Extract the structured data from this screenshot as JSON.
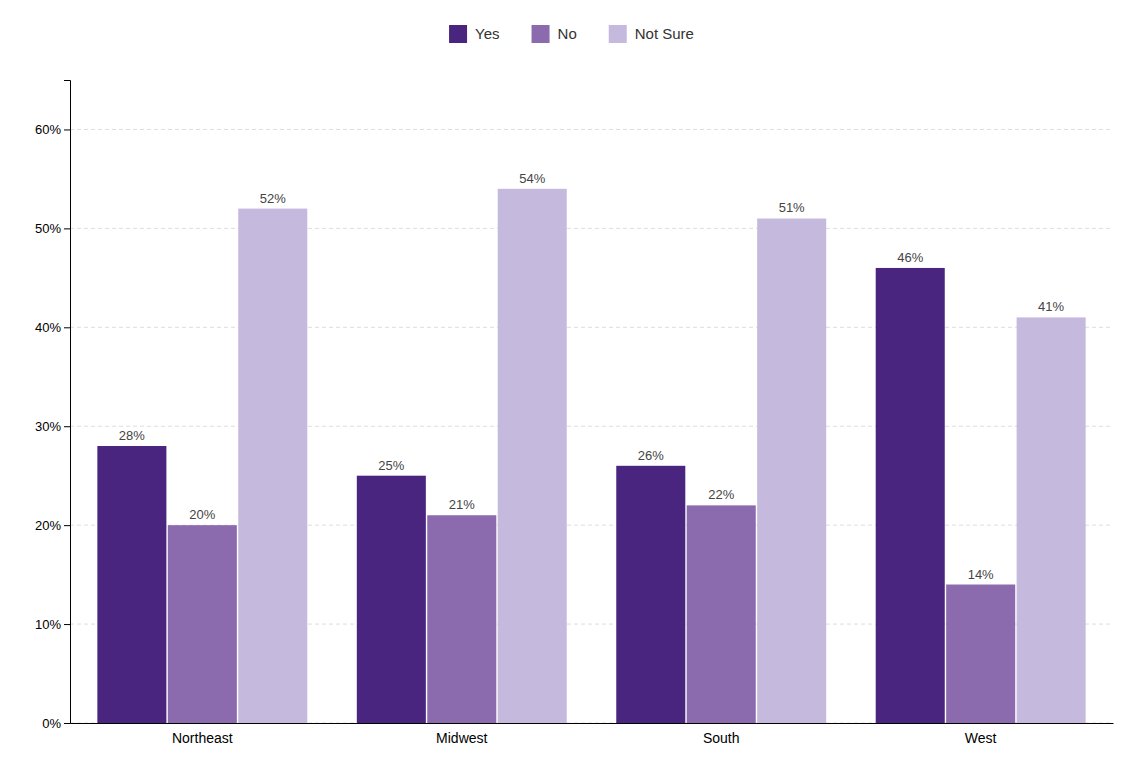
{
  "chart_data": {
    "type": "bar",
    "categories": [
      "Northeast",
      "Midwest",
      "South",
      "West"
    ],
    "series": [
      {
        "name": "Yes",
        "color": "#4a2580",
        "values": [
          28,
          25,
          26,
          46
        ],
        "value_labels": [
          "28%",
          "25%",
          "26%",
          "46%"
        ]
      },
      {
        "name": "No",
        "color": "#8b6aae",
        "values": [
          20,
          21,
          22,
          14
        ],
        "value_labels": [
          "20%",
          "21%",
          "22%",
          "14%"
        ]
      },
      {
        "name": "Not Sure",
        "color": "#c5bade",
        "values": [
          52,
          54,
          51,
          41
        ],
        "value_labels": [
          "52%",
          "54%",
          "51%",
          "41%"
        ]
      }
    ],
    "ylim": [
      0,
      65
    ],
    "yticks": [
      {
        "value": 0,
        "label": "0%"
      },
      {
        "value": 10,
        "label": "10%"
      },
      {
        "value": 20,
        "label": "20%"
      },
      {
        "value": 30,
        "label": "30%"
      },
      {
        "value": 40,
        "label": "40%"
      },
      {
        "value": 50,
        "label": "50%"
      },
      {
        "value": 60,
        "label": "60%"
      }
    ],
    "grid": true,
    "legend": "top",
    "data_labels": true
  }
}
